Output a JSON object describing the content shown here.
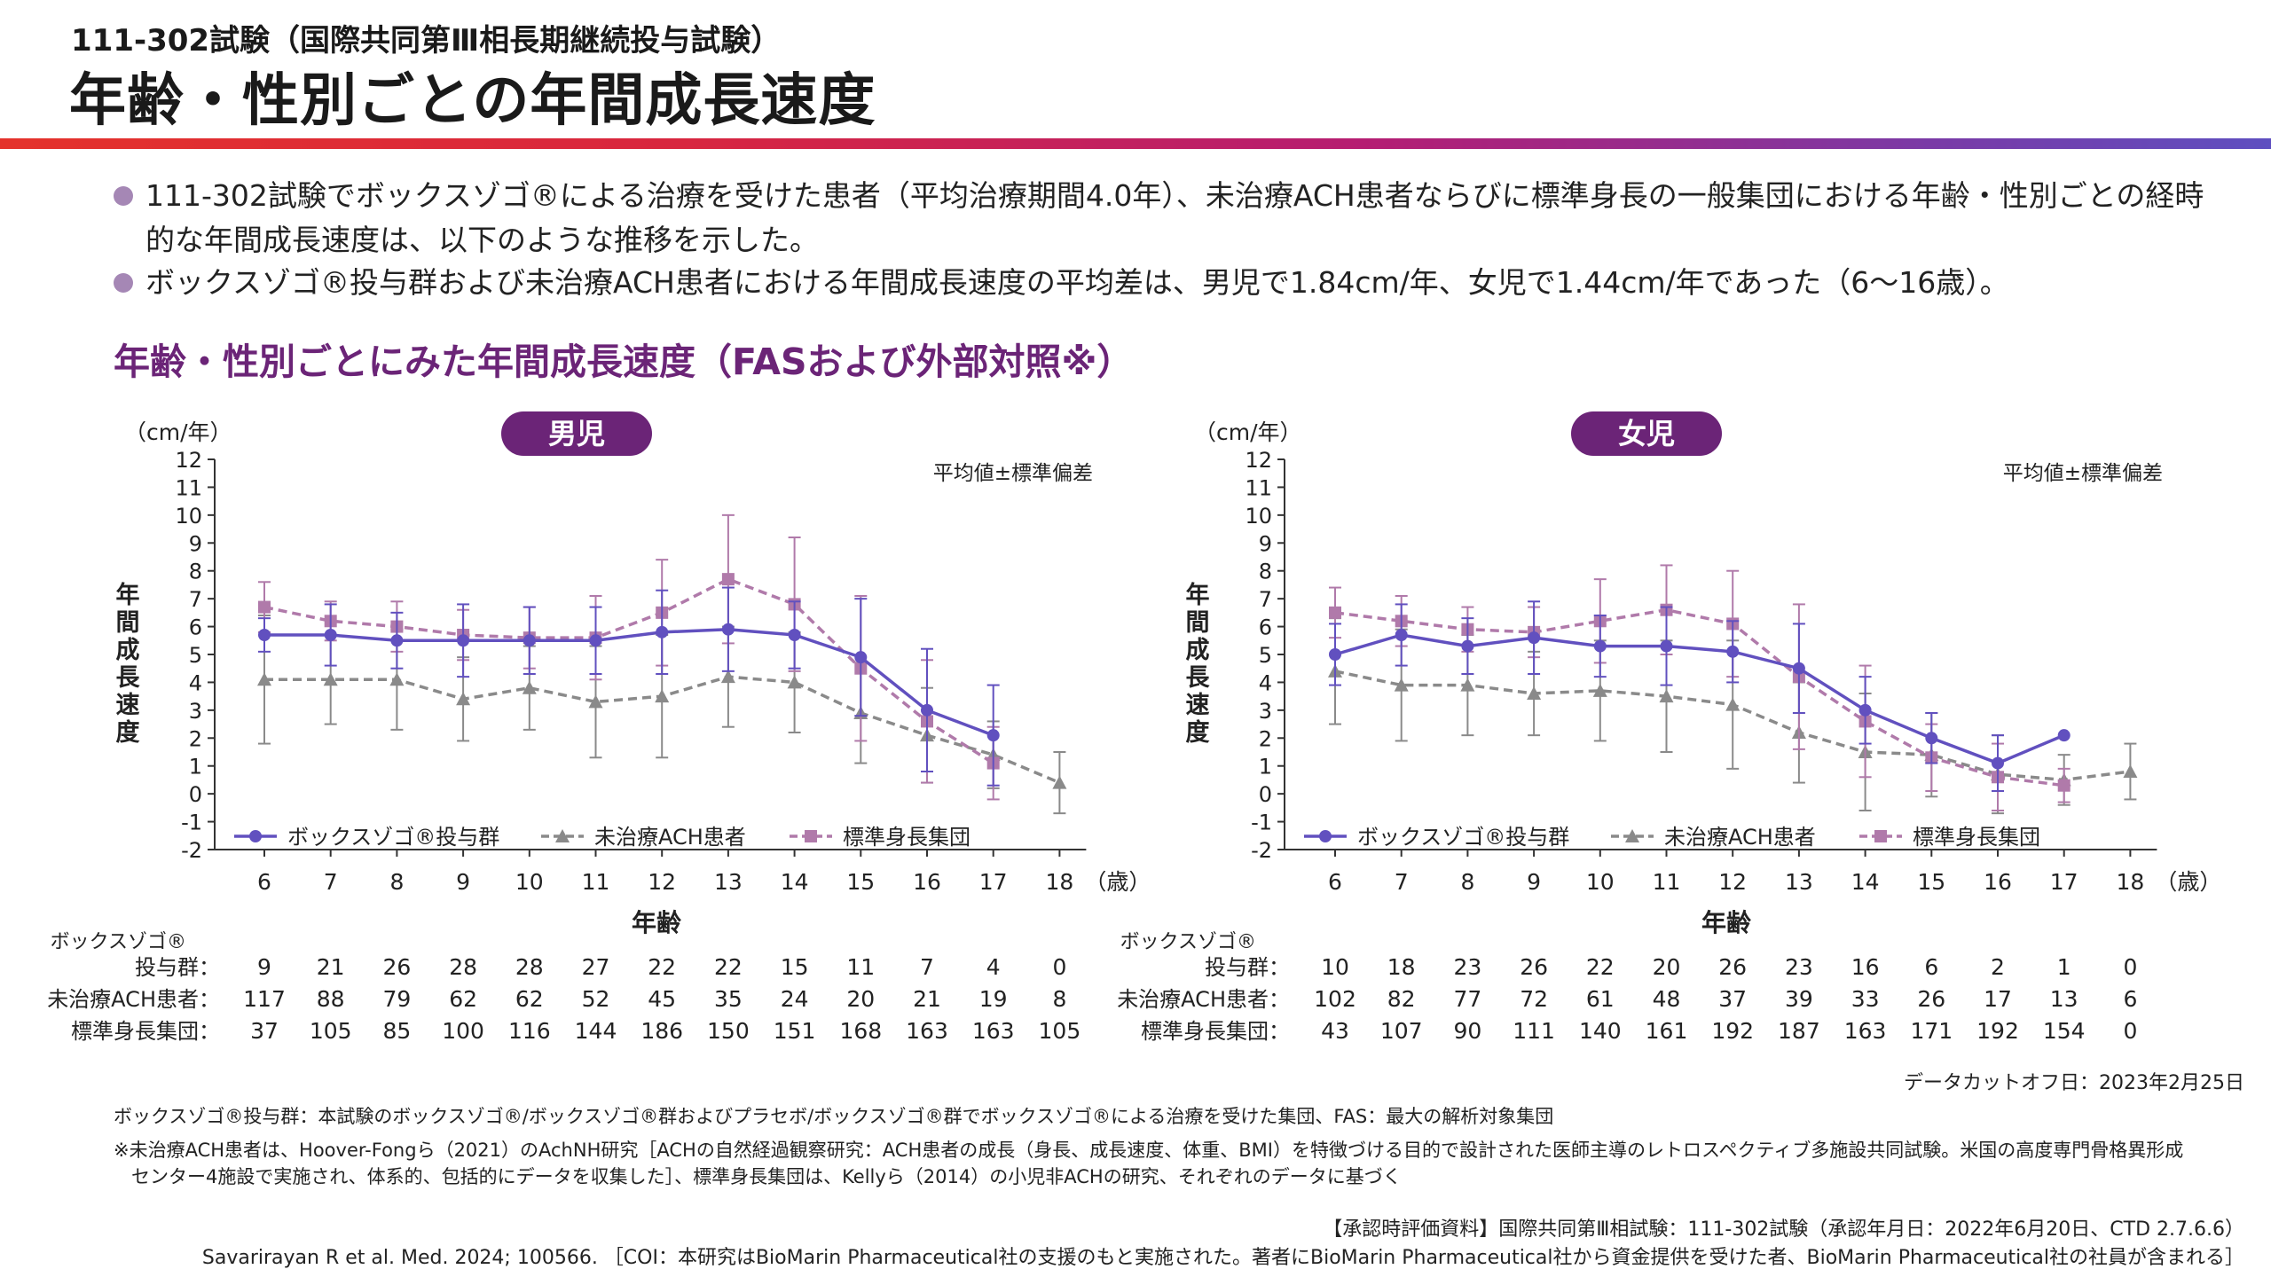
{
  "header": {
    "subtitle": "111-302試験（国際共同第Ⅲ相長期継続投与試験）",
    "title": "年齢・性別ごとの年間成長速度"
  },
  "bullets": [
    "111-302試験でボックスゾゴ®による治療を受けた患者（平均治療期間4.0年）、未治療ACH患者ならびに標準身長の一般集団における年齢・性別ごとの経時的な年間成長速度は、以下のような推移を示した。",
    "ボックスゾゴ®投与群および未治療ACH患者における年間成長速度の平均差は、男児で1.84cm/年、女児で1.44cm/年であった（6〜16歳）。"
  ],
  "section_title": "年齢・性別ごとにみた年間成長速度（FASおよび外部対照※）",
  "colors": {
    "voxzogo": "#6150bf",
    "untreated": "#8a8a8a",
    "standard": "#b07aaa",
    "badge": "#6b2477",
    "accent_title": "#6b2477"
  },
  "chart_data": [
    {
      "type": "line",
      "title": "男児",
      "unit": "（cm/年）",
      "note": "平均値±標準偏差",
      "xlabel": "年齢",
      "xunit": "（歳）",
      "ylabel": "年間成長速度",
      "ylim": [
        -2,
        12
      ],
      "yticks": [
        -2,
        -1,
        0,
        1,
        2,
        3,
        4,
        5,
        6,
        7,
        8,
        9,
        10,
        11,
        12
      ],
      "x": [
        6,
        7,
        8,
        9,
        10,
        11,
        12,
        13,
        14,
        15,
        16,
        17,
        18
      ],
      "legend_position": "bottom-left",
      "series": [
        {
          "name": "ボックスゾゴ®投与群",
          "style": "solid",
          "marker": "circle",
          "x": [
            6,
            7,
            8,
            9,
            10,
            11,
            12,
            13,
            14,
            15,
            16,
            17
          ],
          "values": [
            5.7,
            5.7,
            5.5,
            5.5,
            5.5,
            5.5,
            5.8,
            5.9,
            5.7,
            4.9,
            3.0,
            2.1
          ],
          "error": [
            0.6,
            1.1,
            1.0,
            1.3,
            1.2,
            1.2,
            1.5,
            1.5,
            1.2,
            2.1,
            2.2,
            1.8
          ]
        },
        {
          "name": "未治療ACH患者",
          "style": "dashed",
          "marker": "triangle",
          "x": [
            6,
            7,
            8,
            9,
            10,
            11,
            12,
            13,
            14,
            15,
            16,
            17,
            18
          ],
          "values": [
            4.1,
            4.1,
            4.1,
            3.4,
            3.8,
            3.3,
            3.5,
            4.2,
            4.0,
            2.9,
            2.1,
            1.4,
            0.4
          ],
          "error": [
            2.3,
            1.6,
            1.8,
            1.5,
            1.5,
            2.0,
            2.2,
            1.8,
            1.8,
            1.8,
            1.7,
            1.2,
            1.1
          ]
        },
        {
          "name": "標準身長集団",
          "style": "dashed",
          "marker": "square",
          "x": [
            6,
            7,
            8,
            9,
            10,
            11,
            12,
            13,
            14,
            15,
            16,
            17
          ],
          "values": [
            6.7,
            6.2,
            6.0,
            5.7,
            5.6,
            5.6,
            6.5,
            7.7,
            6.8,
            4.5,
            2.6,
            1.1
          ],
          "error": [
            0.9,
            0.7,
            0.9,
            0.9,
            1.1,
            1.5,
            1.9,
            2.3,
            2.4,
            2.6,
            2.2,
            1.3
          ]
        }
      ],
      "n_table": {
        "rows": [
          {
            "label_line1": "ボックスゾゴ®",
            "label": "投与群：",
            "values": [
              "9",
              "21",
              "26",
              "28",
              "28",
              "27",
              "22",
              "22",
              "15",
              "11",
              "7",
              "4",
              "0"
            ]
          },
          {
            "label": "未治療ACH患者：",
            "values": [
              "117",
              "88",
              "79",
              "62",
              "62",
              "52",
              "45",
              "35",
              "24",
              "20",
              "21",
              "19",
              "8"
            ]
          },
          {
            "label": "標準身長集団：",
            "values": [
              "37",
              "105",
              "85",
              "100",
              "116",
              "144",
              "186",
              "150",
              "151",
              "168",
              "163",
              "163",
              "105"
            ]
          }
        ]
      }
    },
    {
      "type": "line",
      "title": "女児",
      "unit": "（cm/年）",
      "note": "平均値±標準偏差",
      "xlabel": "年齢",
      "xunit": "（歳）",
      "ylabel": "年間成長速度",
      "ylim": [
        -2,
        12
      ],
      "yticks": [
        -2,
        -1,
        0,
        1,
        2,
        3,
        4,
        5,
        6,
        7,
        8,
        9,
        10,
        11,
        12
      ],
      "x": [
        6,
        7,
        8,
        9,
        10,
        11,
        12,
        13,
        14,
        15,
        16,
        17,
        18
      ],
      "legend_position": "bottom-left",
      "series": [
        {
          "name": "ボックスゾゴ®投与群",
          "style": "solid",
          "marker": "circle",
          "x": [
            6,
            7,
            8,
            9,
            10,
            11,
            12,
            13,
            14,
            15,
            16,
            17
          ],
          "values": [
            5.0,
            5.7,
            5.3,
            5.6,
            5.3,
            5.3,
            5.1,
            4.5,
            3.0,
            2.0,
            1.1,
            2.1
          ],
          "error": [
            1.1,
            1.1,
            1.0,
            1.3,
            1.1,
            1.4,
            1.1,
            1.6,
            1.2,
            0.9,
            1.0,
            0
          ]
        },
        {
          "name": "未治療ACH患者",
          "style": "dashed",
          "marker": "triangle",
          "x": [
            6,
            7,
            8,
            9,
            10,
            11,
            12,
            13,
            14,
            15,
            16,
            17,
            18
          ],
          "values": [
            4.4,
            3.9,
            3.9,
            3.6,
            3.7,
            3.5,
            3.2,
            2.2,
            1.5,
            1.4,
            0.7,
            0.5,
            0.8
          ],
          "error": [
            1.9,
            2.0,
            1.8,
            1.5,
            1.8,
            2.0,
            2.3,
            1.8,
            2.1,
            1.5,
            1.4,
            0.9,
            1.0
          ]
        },
        {
          "name": "標準身長集団",
          "style": "dashed",
          "marker": "square",
          "x": [
            6,
            7,
            8,
            9,
            10,
            11,
            12,
            13,
            14,
            15,
            16,
            17
          ],
          "values": [
            6.5,
            6.2,
            5.9,
            5.8,
            6.2,
            6.6,
            6.1,
            4.2,
            2.6,
            1.3,
            0.6,
            0.3
          ],
          "error": [
            0.9,
            0.9,
            0.8,
            0.9,
            1.5,
            1.6,
            1.9,
            2.6,
            2.0,
            1.2,
            1.2,
            0.6
          ]
        }
      ],
      "n_table": {
        "rows": [
          {
            "label_line1": "ボックスゾゴ®",
            "label": "投与群：",
            "values": [
              "10",
              "18",
              "23",
              "26",
              "22",
              "20",
              "26",
              "23",
              "16",
              "6",
              "2",
              "1",
              "0"
            ]
          },
          {
            "label": "未治療ACH患者：",
            "values": [
              "102",
              "82",
              "77",
              "72",
              "61",
              "48",
              "37",
              "39",
              "33",
              "26",
              "17",
              "13",
              "6"
            ]
          },
          {
            "label": "標準身長集団：",
            "values": [
              "43",
              "107",
              "90",
              "111",
              "140",
              "161",
              "192",
              "187",
              "163",
              "171",
              "192",
              "154",
              "0"
            ]
          }
        ]
      }
    }
  ],
  "datacut": "データカットオフ日：2023年2月25日",
  "footnotes": [
    "ボックスゾゴ®投与群：本試験のボックスゾゴ®/ボックスゾゴ®群およびプラセボ/ボックスゾゴ®群でボックスゾゴ®による治療を受けた集団、FAS：最大の解析対象集団",
    "※未治療ACH患者は、Hoover-Fongら（2021）のAchNH研究［ACHの自然経過観察研究：ACH患者の成長（身長、成長速度、体重、BMI）を特徴づける目的で設計された医師主導のレトロスペクティブ多施設共同試験。米国の高度専門骨格異形成",
    "センター4施設で実施され、体系的、包括的にデータを収集した］、標準身長集団は、Kellyら（2014）の小児非ACHの研究、それぞれのデータに基づく"
  ],
  "source_line1": "【承認時評価資料】国際共同第Ⅲ相試験：111-302試験（承認年月日：2022年6月20日、CTD 2.7.6.6）",
  "source_line2": "Savarirayan R et al. Med. 2024; 100566. ［COI：本研究はBioMarin Pharmaceutical社の支援のもと実施された。著者にBioMarin Pharmaceutical社から資金提供を受けた者、BioMarin Pharmaceutical社の社員が含まれる］"
}
